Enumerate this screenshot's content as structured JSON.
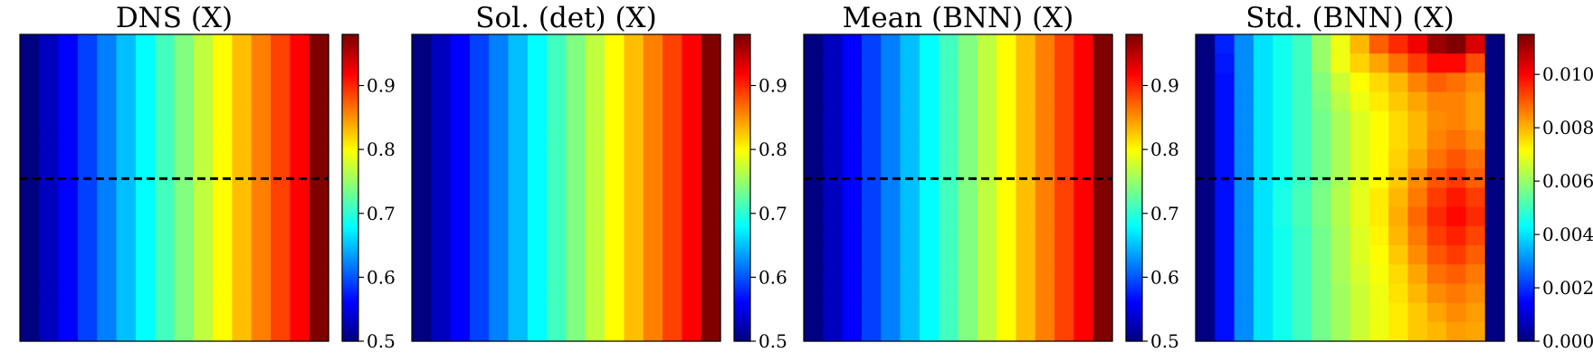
{
  "chart_data": [
    {
      "type": "heatmap",
      "title": "DNS (X)",
      "grid_size": 16,
      "colormap": "jet",
      "colorbar": {
        "min": 0.5,
        "max": 0.98,
        "ticks": [
          "0.5",
          "0.6",
          "0.7",
          "0.8",
          "0.9"
        ],
        "tick_values": [
          0.5,
          0.6,
          0.7,
          0.8,
          0.9
        ]
      },
      "dashed_line_row_fraction": 0.47,
      "column_values": [
        0.5,
        0.53,
        0.56,
        0.59,
        0.62,
        0.65,
        0.68,
        0.71,
        0.74,
        0.77,
        0.8,
        0.83,
        0.86,
        0.89,
        0.92,
        0.98
      ],
      "row_offsets": [
        0,
        0,
        0,
        0,
        0,
        0,
        0,
        0,
        0,
        0,
        0,
        0,
        0,
        0,
        0,
        0
      ]
    },
    {
      "type": "heatmap",
      "title": "Sol. (det) (X)",
      "grid_size": 16,
      "colormap": "jet",
      "colorbar": {
        "min": 0.5,
        "max": 0.98,
        "ticks": [
          "0.5",
          "0.6",
          "0.7",
          "0.8",
          "0.9"
        ],
        "tick_values": [
          0.5,
          0.6,
          0.7,
          0.8,
          0.9
        ]
      },
      "dashed_line_row_fraction": null,
      "column_values": [
        0.5,
        0.53,
        0.56,
        0.59,
        0.62,
        0.65,
        0.68,
        0.71,
        0.74,
        0.77,
        0.8,
        0.83,
        0.86,
        0.89,
        0.92,
        0.98
      ],
      "row_offsets": [
        0,
        0,
        0,
        0,
        0,
        0,
        0,
        0,
        0,
        0,
        0,
        0,
        0,
        0,
        0,
        0
      ]
    },
    {
      "type": "heatmap",
      "title": "Mean (BNN) (X)",
      "grid_size": 16,
      "colormap": "jet",
      "colorbar": {
        "min": 0.5,
        "max": 0.98,
        "ticks": [
          "0.5",
          "0.6",
          "0.7",
          "0.8",
          "0.9"
        ],
        "tick_values": [
          0.5,
          0.6,
          0.7,
          0.8,
          0.9
        ]
      },
      "dashed_line_row_fraction": 0.47,
      "column_values": [
        0.5,
        0.53,
        0.56,
        0.59,
        0.62,
        0.65,
        0.68,
        0.71,
        0.74,
        0.77,
        0.8,
        0.83,
        0.86,
        0.89,
        0.92,
        0.98
      ],
      "row_offsets": [
        0,
        0,
        0,
        0,
        0,
        0,
        0,
        0,
        0,
        0,
        0,
        0,
        0,
        0,
        0,
        0
      ]
    },
    {
      "type": "heatmap",
      "title": "Std. (BNN) (X)",
      "grid_size": 16,
      "colormap": "jet",
      "colorbar": {
        "min": 0.0,
        "max": 0.0115,
        "ticks": [
          "0.000",
          "0.002",
          "0.004",
          "0.006",
          "0.008",
          "0.010"
        ],
        "tick_values": [
          0.0,
          0.002,
          0.004,
          0.006,
          0.008,
          0.01
        ]
      },
      "dashed_line_row_fraction": 0.47,
      "values": [
        [
          0.0,
          0.0018,
          0.003,
          0.004,
          0.0045,
          0.005,
          0.006,
          0.007,
          0.008,
          0.009,
          0.0096,
          0.0102,
          0.0112,
          0.0115,
          0.0105,
          0.0
        ],
        [
          0.0,
          0.0017,
          0.003,
          0.004,
          0.0045,
          0.005,
          0.006,
          0.007,
          0.0077,
          0.0082,
          0.0088,
          0.0094,
          0.01,
          0.01,
          0.0092,
          0.0
        ],
        [
          0.0,
          0.0016,
          0.003,
          0.004,
          0.0045,
          0.005,
          0.0058,
          0.0066,
          0.0072,
          0.0076,
          0.008,
          0.0086,
          0.009,
          0.0088,
          0.0085,
          0.0
        ],
        [
          0.0,
          0.0016,
          0.003,
          0.004,
          0.0045,
          0.005,
          0.0057,
          0.0064,
          0.007,
          0.0074,
          0.0078,
          0.0082,
          0.0086,
          0.0086,
          0.0083,
          0.0
        ],
        [
          0.0,
          0.0016,
          0.003,
          0.004,
          0.0045,
          0.005,
          0.0056,
          0.0062,
          0.0068,
          0.0072,
          0.0076,
          0.008,
          0.0085,
          0.0086,
          0.0083,
          0.0
        ],
        [
          0.0,
          0.0016,
          0.003,
          0.004,
          0.0045,
          0.005,
          0.0056,
          0.0062,
          0.0068,
          0.0072,
          0.0076,
          0.008,
          0.0086,
          0.0088,
          0.0085,
          0.0
        ],
        [
          0.0,
          0.0016,
          0.003,
          0.004,
          0.0045,
          0.005,
          0.0056,
          0.0062,
          0.0068,
          0.0072,
          0.0077,
          0.0082,
          0.0088,
          0.0091,
          0.0088,
          0.0
        ],
        [
          0.0,
          0.0016,
          0.003,
          0.004,
          0.0045,
          0.005,
          0.0056,
          0.0062,
          0.0068,
          0.0072,
          0.0078,
          0.0085,
          0.0091,
          0.0094,
          0.009,
          0.0
        ],
        [
          0.0,
          0.0016,
          0.003,
          0.004,
          0.0046,
          0.0051,
          0.0057,
          0.0063,
          0.0069,
          0.0074,
          0.008,
          0.0087,
          0.0094,
          0.0098,
          0.0094,
          0.0
        ],
        [
          0.0,
          0.0016,
          0.003,
          0.004,
          0.0046,
          0.0051,
          0.0057,
          0.0063,
          0.0069,
          0.0074,
          0.0081,
          0.0089,
          0.0096,
          0.01,
          0.0096,
          0.0
        ],
        [
          0.0,
          0.0016,
          0.003,
          0.004,
          0.0045,
          0.005,
          0.0056,
          0.0062,
          0.0068,
          0.0073,
          0.008,
          0.0087,
          0.0094,
          0.0097,
          0.0093,
          0.0
        ],
        [
          0.0,
          0.0016,
          0.003,
          0.004,
          0.0045,
          0.005,
          0.0056,
          0.0062,
          0.0068,
          0.0072,
          0.0078,
          0.0085,
          0.0091,
          0.0094,
          0.009,
          0.0
        ],
        [
          0.0,
          0.0016,
          0.003,
          0.004,
          0.0045,
          0.005,
          0.0056,
          0.0062,
          0.0067,
          0.0071,
          0.0076,
          0.0082,
          0.0088,
          0.009,
          0.0087,
          0.0
        ],
        [
          0.0,
          0.0016,
          0.003,
          0.004,
          0.0045,
          0.005,
          0.0056,
          0.0061,
          0.0066,
          0.007,
          0.0075,
          0.008,
          0.0085,
          0.0087,
          0.0085,
          0.0
        ],
        [
          0.0,
          0.0016,
          0.003,
          0.004,
          0.0045,
          0.005,
          0.0056,
          0.0061,
          0.0066,
          0.007,
          0.0074,
          0.0078,
          0.0082,
          0.0085,
          0.0083,
          0.0
        ],
        [
          0.0,
          0.0016,
          0.003,
          0.004,
          0.0045,
          0.005,
          0.0056,
          0.0061,
          0.0066,
          0.007,
          0.0074,
          0.0078,
          0.008,
          0.0083,
          0.0082,
          0.0
        ]
      ]
    }
  ]
}
